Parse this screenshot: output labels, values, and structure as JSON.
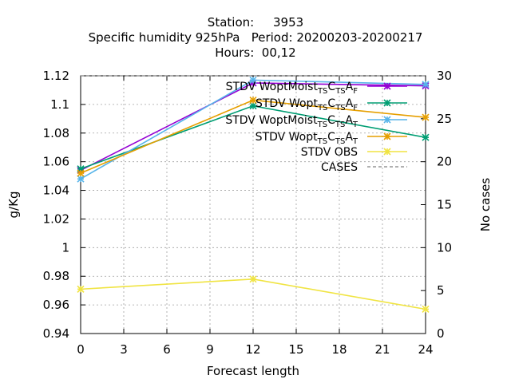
{
  "chart_data": {
    "type": "line",
    "title_lines": [
      "Station:     3953",
      "Specific humidity 925hPa   Period: 20200203-20200217",
      "Hours:  00,12"
    ],
    "xlabel": "Forecast length",
    "ylabel": "g/Kg",
    "y2label": "No cases",
    "xlim": [
      0,
      24
    ],
    "ylim": [
      0.94,
      1.12
    ],
    "y2lim": [
      0,
      30
    ],
    "xticks": [
      "0",
      "3",
      "6",
      "9",
      "12",
      "15",
      "18",
      "21",
      "24"
    ],
    "yticks": [
      "0.94",
      "0.96",
      "0.98",
      "1",
      "1.02",
      "1.04",
      "1.06",
      "1.08",
      "1.1",
      "1.12"
    ],
    "y2ticks": [
      "0",
      "5",
      "10",
      "15",
      "20",
      "25",
      "30"
    ],
    "grid": true,
    "legend_position": "top-right",
    "x": [
      0,
      12,
      24
    ],
    "series": [
      {
        "name": "STDV WoptMoist",
        "sub1": "TS",
        "c": "C",
        "sub2": "TS",
        "a": "A",
        "sub3": "F",
        "color": "#9400d3",
        "values": [
          1.054,
          1.115,
          1.113
        ]
      },
      {
        "name": "STDV Wopt",
        "sub1": "TS",
        "c": "C",
        "sub2": "TS",
        "a": "A",
        "sub3": "F",
        "color": "#009e73",
        "values": [
          1.055,
          1.099,
          1.077
        ]
      },
      {
        "name": "STDV WoptMoist",
        "sub1": "TS",
        "c": "C",
        "sub2": "TS",
        "a": "A",
        "sub3": "T",
        "color": "#56b4e9",
        "values": [
          1.048,
          1.117,
          1.114
        ]
      },
      {
        "name": "STDV Wopt",
        "sub1": "TS",
        "c": "C",
        "sub2": "TS",
        "a": "A",
        "sub3": "T",
        "color": "#e69f00",
        "values": [
          1.052,
          1.103,
          1.091
        ]
      },
      {
        "name": "STDV OBS",
        "color": "#f0e442",
        "values": [
          0.971,
          0.978,
          0.957
        ]
      }
    ],
    "cases": {
      "name": "CASES",
      "color": "#808080",
      "values": [
        30,
        30,
        30
      ]
    }
  }
}
